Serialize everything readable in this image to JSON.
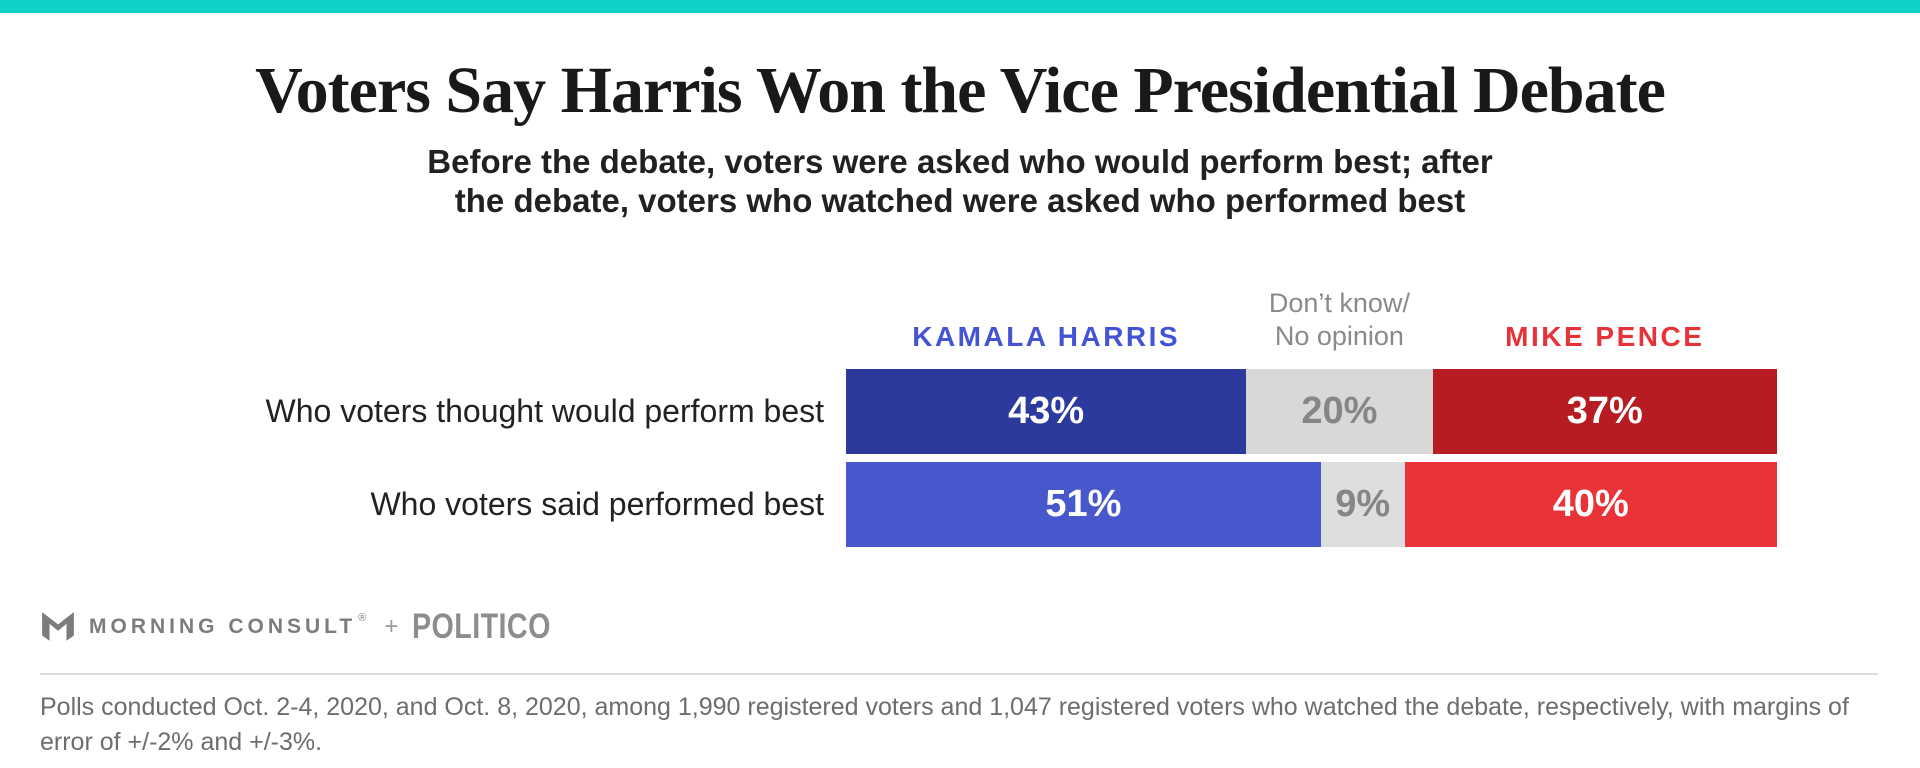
{
  "accent_color": "#0fd1c7",
  "header": {
    "title": "Voters Say Harris Won the Vice Presidential Debate",
    "subtitle": "Before the debate, voters were asked who would perform best; after\nthe debate, voters who watched were asked who performed best"
  },
  "chart_data": {
    "type": "bar",
    "stacked": true,
    "orientation": "horizontal",
    "unit": "%",
    "xlim": [
      0,
      100
    ],
    "legend_position": "top",
    "categories": [
      "Who voters thought would perform best",
      "Who voters said performed best"
    ],
    "series": [
      {
        "name": "KAMALA HARRIS",
        "muted": false,
        "header_color": "#4353d4",
        "values": [
          43,
          51
        ],
        "bar_colors": [
          "#2c3a9e",
          "#4758cd"
        ],
        "label_colors": [
          "#ffffff",
          "#ffffff"
        ]
      },
      {
        "name": "Don’t know/\nNo opinion",
        "muted": true,
        "header_color": "#8a8a8a",
        "values": [
          20,
          9
        ],
        "bar_colors": [
          "#d8d8d8",
          "#dedede"
        ],
        "label_colors": [
          "#868686",
          "#868686"
        ]
      },
      {
        "name": "MIKE PENCE",
        "muted": false,
        "header_color": "#e73238",
        "values": [
          37,
          40
        ],
        "bar_colors": [
          "#b71c22",
          "#ea3338"
        ],
        "label_colors": [
          "#ffffff",
          "#ffffff"
        ]
      }
    ]
  },
  "branding": {
    "morning_consult": "MORNING CONSULT",
    "registered_mark": "®",
    "plus": "+",
    "politico": "POLITICO"
  },
  "footnote": "Polls conducted Oct. 2-4, 2020, and Oct. 8, 2020, among 1,990 registered voters and 1,047 registered voters who watched the debate, respectively, with margins of error of +/-2% and +/-3%."
}
